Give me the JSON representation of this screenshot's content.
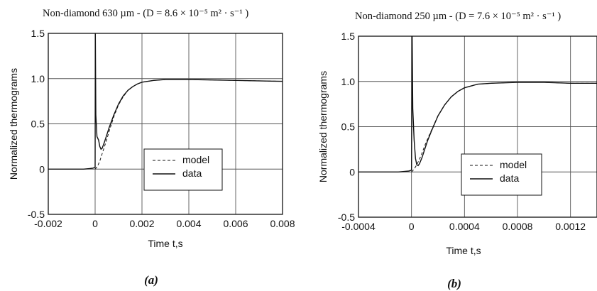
{
  "chart_data": [
    {
      "type": "line",
      "panel": "a",
      "title": "Non-diamond 630 µm - (D = 8.6 × 10⁻⁵ m² · s⁻¹ )",
      "xlabel": "Time t,s",
      "ylabel": "Normalized thermograms",
      "caption": "(a)",
      "xlim": [
        -0.002,
        0.008
      ],
      "ylim": [
        -0.5,
        1.5
      ],
      "xticks": [
        -0.002,
        0,
        0.002,
        0.004,
        0.006,
        0.008
      ],
      "xtick_labels": [
        "-0.002",
        "0",
        "0.002",
        "0.004",
        "0.006",
        "0.008"
      ],
      "yticks": [
        -0.5,
        0,
        0.5,
        1.0,
        1.5
      ],
      "ytick_labels": [
        "-0.5",
        "0",
        "0.5",
        "1.0",
        "1.5"
      ],
      "grid": true,
      "legend_position": "lower-right",
      "series": [
        {
          "name": "model",
          "style": "dashed",
          "x": [
            0,
            0.0001,
            0.0002,
            0.0003,
            0.0004,
            0.0005,
            0.0006,
            0.0008,
            0.001,
            0.0012,
            0.0014,
            0.0016,
            0.0018,
            0.002,
            0.0025,
            0.003,
            0.004,
            0.006,
            0.008
          ],
          "y": [
            0,
            0.03,
            0.09,
            0.17,
            0.25,
            0.33,
            0.42,
            0.58,
            0.71,
            0.8,
            0.87,
            0.91,
            0.94,
            0.96,
            0.98,
            0.99,
            0.99,
            0.98,
            0.97
          ]
        },
        {
          "name": "data",
          "style": "solid",
          "x": [
            -0.002,
            -0.0005,
            -0.0001,
            0,
            1e-05,
            3e-05,
            8e-05,
            0.00015,
            0.0002,
            0.00025,
            0.0003,
            0.0004,
            0.0005,
            0.0006,
            0.0008,
            0.001,
            0.0012,
            0.0014,
            0.0016,
            0.0018,
            0.002,
            0.0025,
            0.003,
            0.004,
            0.006,
            0.008
          ],
          "y": [
            0,
            0,
            0.01,
            0.02,
            1.5,
            0.6,
            0.36,
            0.32,
            0.25,
            0.22,
            0.23,
            0.3,
            0.38,
            0.46,
            0.6,
            0.72,
            0.81,
            0.87,
            0.91,
            0.94,
            0.96,
            0.98,
            0.99,
            0.99,
            0.98,
            0.97
          ]
        }
      ]
    },
    {
      "type": "line",
      "panel": "b",
      "title": "Non-diamond 250 µm - (D = 7.6 × 10⁻⁵ m² · s⁻¹ )",
      "xlabel": "Time t,s",
      "ylabel": "Normalized thermograms",
      "caption": "(b)",
      "xlim": [
        -0.0004,
        0.0014
      ],
      "ylim": [
        -0.5,
        1.5
      ],
      "xticks": [
        -0.0004,
        0,
        0.0004,
        0.0008,
        0.0012
      ],
      "xtick_labels": [
        "-0.0004",
        "0",
        "0.0004",
        "0.0008",
        "0.0012"
      ],
      "yticks": [
        -0.5,
        0,
        0.5,
        1.0,
        1.5
      ],
      "ytick_labels": [
        "-0.5",
        "0",
        "0.5",
        "1.0",
        "1.5"
      ],
      "grid": true,
      "legend_position": "lower-right",
      "series": [
        {
          "name": "model",
          "style": "dashed",
          "x": [
            0,
            2e-05,
            4e-05,
            6e-05,
            8e-05,
            0.0001,
            0.00012,
            0.00015,
            0.0002,
            0.00025,
            0.0003,
            0.00035,
            0.0004,
            0.0005,
            0.0006,
            0.0008,
            0.001,
            0.0012,
            0.0014
          ],
          "y": [
            0,
            0.03,
            0.08,
            0.14,
            0.21,
            0.29,
            0.36,
            0.46,
            0.62,
            0.74,
            0.83,
            0.89,
            0.93,
            0.97,
            0.98,
            0.99,
            0.99,
            0.98,
            0.98
          ]
        },
        {
          "name": "data",
          "style": "solid",
          "x": [
            -0.0004,
            -0.0001,
            -2e-05,
            0,
            5e-06,
            1e-05,
            2e-05,
            3e-05,
            4e-05,
            5e-05,
            6e-05,
            8e-05,
            0.0001,
            0.00012,
            0.00015,
            0.0002,
            0.00025,
            0.0003,
            0.00035,
            0.0004,
            0.0005,
            0.0006,
            0.0008,
            0.001,
            0.0012,
            0.0014
          ],
          "y": [
            0,
            0,
            0.01,
            0.02,
            1.5,
            0.7,
            0.35,
            0.15,
            0.08,
            0.07,
            0.09,
            0.16,
            0.25,
            0.34,
            0.45,
            0.62,
            0.74,
            0.83,
            0.89,
            0.93,
            0.97,
            0.98,
            0.99,
            0.99,
            0.98,
            0.98
          ]
        }
      ]
    }
  ]
}
